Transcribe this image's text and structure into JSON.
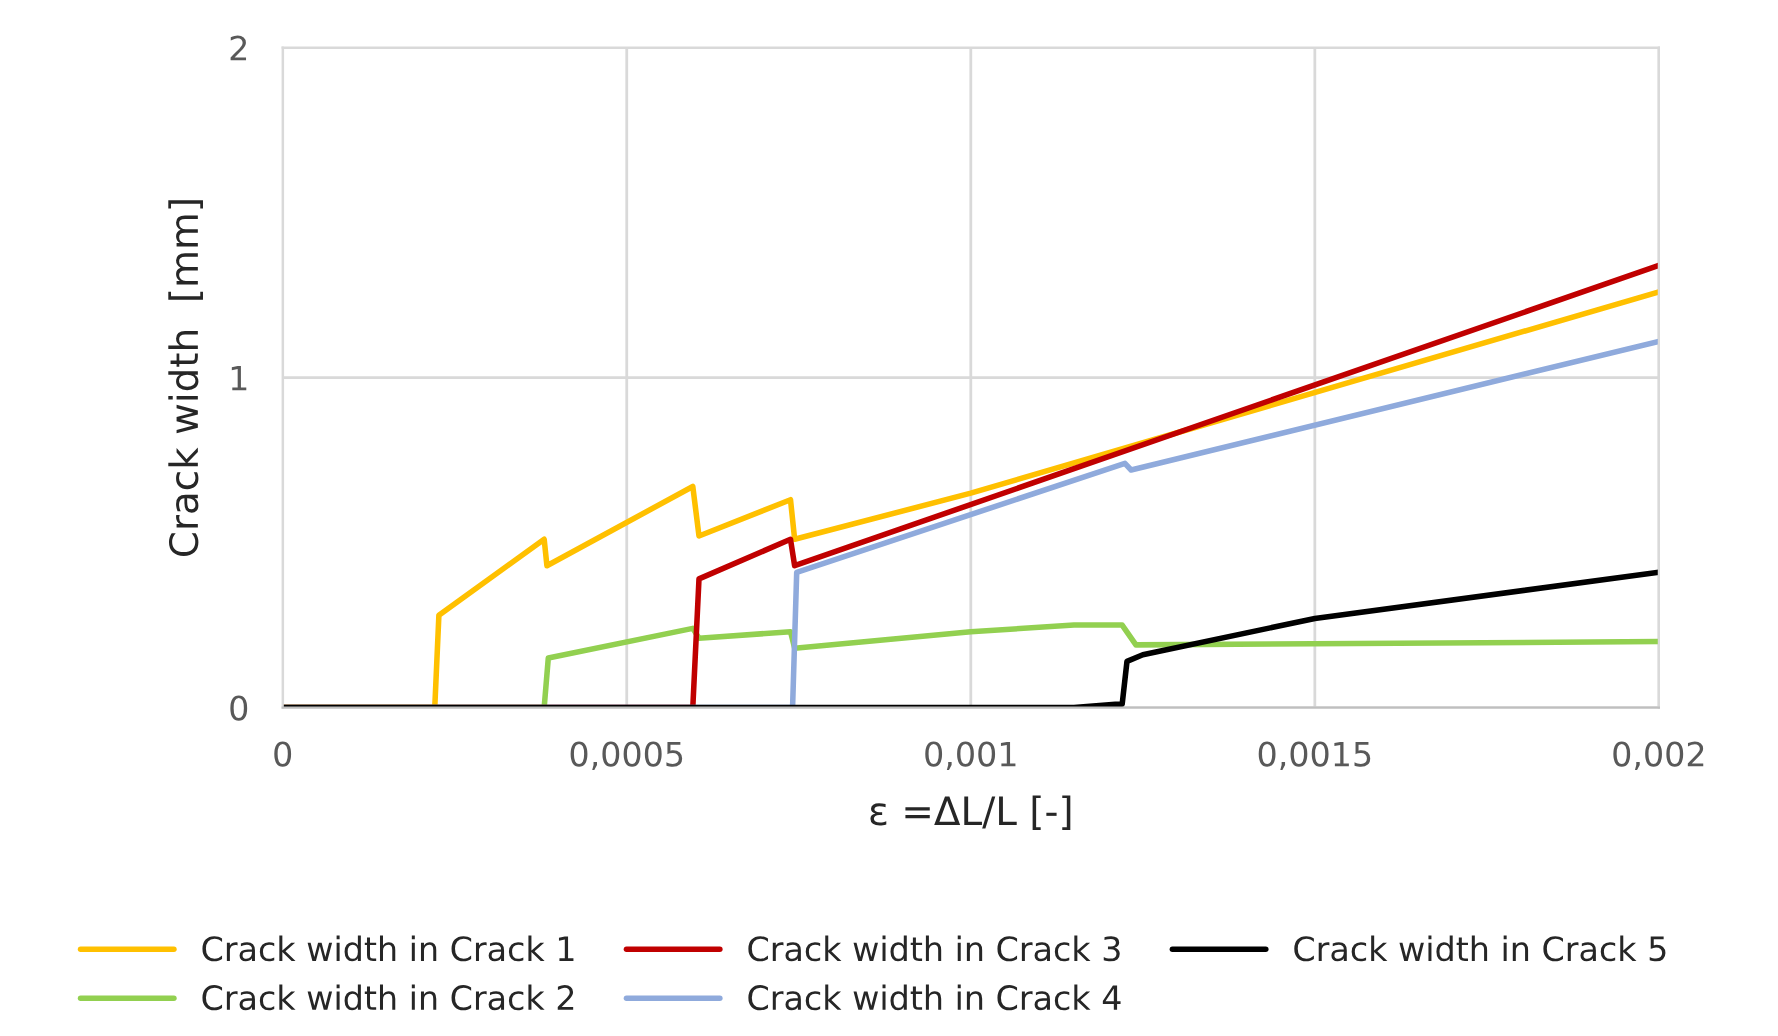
{
  "chart_data": {
    "type": "line",
    "xlabel": "ε =ΔL/L [-]",
    "ylabel": "Crack width  [mm]",
    "xlim": [
      0,
      0.002
    ],
    "xticks": [
      {
        "value": 0,
        "label": "0"
      },
      {
        "value": 0.0005,
        "label": "0,0005"
      },
      {
        "value": 0.001,
        "label": "0,001"
      },
      {
        "value": 0.0015,
        "label": "0,0015"
      },
      {
        "value": 0.002,
        "label": "0,002"
      }
    ],
    "ylim": [
      0,
      2
    ],
    "yticks": [
      0,
      1,
      2
    ],
    "grid": true,
    "legend": "bottom",
    "marker": "none",
    "line_style": "solid",
    "series": [
      {
        "name": "Crack width in Crack 1",
        "color": "#ffc000",
        "x": [
          0,
          0.000221,
          0.000227,
          0.00038,
          0.000384,
          0.000596,
          0.000605,
          0.000738,
          0.000744,
          0.001,
          0.002
        ],
        "values": [
          0,
          0,
          0.28,
          0.51,
          0.43,
          0.67,
          0.52,
          0.63,
          0.51,
          0.65,
          1.26
        ]
      },
      {
        "name": "Crack width in Crack 2",
        "color": "#92d050",
        "x": [
          0,
          0.00038,
          0.000386,
          0.000596,
          0.000605,
          0.000738,
          0.000744,
          0.001,
          0.00115,
          0.00122,
          0.00124,
          0.002
        ],
        "values": [
          0,
          0,
          0.15,
          0.24,
          0.21,
          0.23,
          0.18,
          0.23,
          0.25,
          0.25,
          0.19,
          0.2
        ]
      },
      {
        "name": "Crack width in Crack 3",
        "color": "#c00000",
        "x": [
          0,
          0.000596,
          0.000605,
          0.000738,
          0.000744,
          0.002
        ],
        "values": [
          0,
          0,
          0.39,
          0.51,
          0.43,
          1.34
        ]
      },
      {
        "name": "Crack width in Crack 4",
        "color": "#8faadc",
        "x": [
          0,
          0.000741,
          0.000747,
          0.001224,
          0.001233,
          0.002
        ],
        "values": [
          0,
          0,
          0.41,
          0.74,
          0.72,
          1.11
        ]
      },
      {
        "name": "Crack width in Crack 5",
        "color": "#000000",
        "x": [
          0,
          0.00115,
          0.00121,
          0.00122,
          0.001227,
          0.00125,
          0.0015,
          0.002
        ],
        "values": [
          0,
          0,
          0.01,
          0.01,
          0.14,
          0.16,
          0.27,
          0.41
        ]
      }
    ]
  }
}
